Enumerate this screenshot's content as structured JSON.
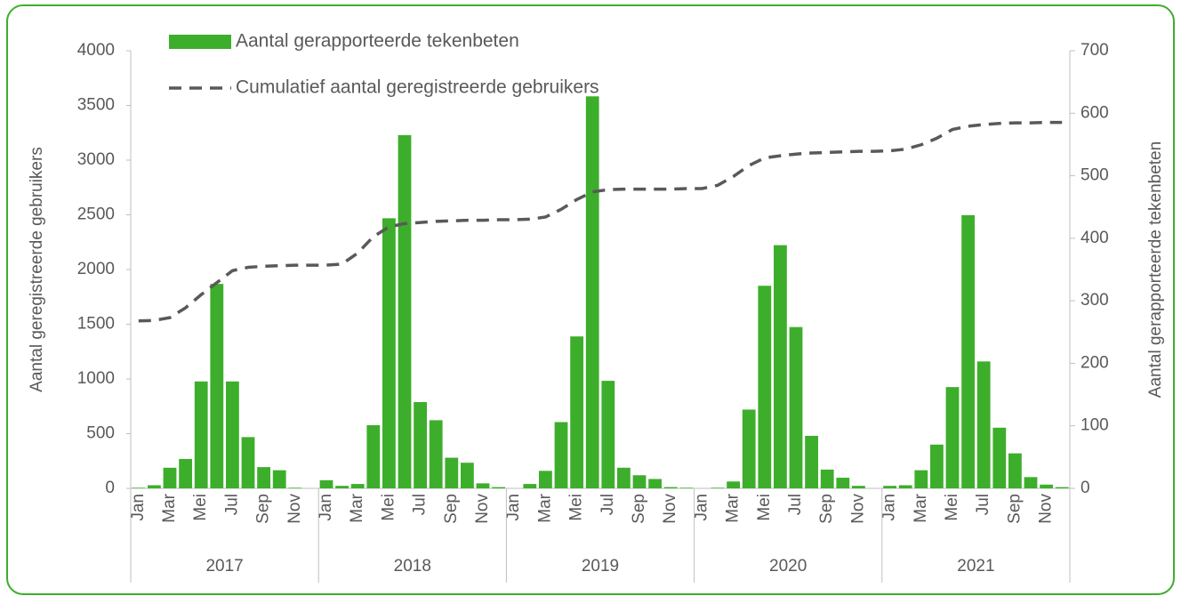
{
  "chart_data": {
    "type": "bar_line",
    "categories": [
      "Jan",
      null,
      "Mar",
      null,
      "Mei",
      null,
      "Jul",
      null,
      "Sep",
      null,
      "Nov",
      null,
      "Jan",
      null,
      "Mar",
      null,
      "Mei",
      null,
      "Jul",
      null,
      "Sep",
      null,
      "Nov",
      null,
      "Jan",
      null,
      "Mar",
      null,
      "Mei",
      null,
      "Jul",
      null,
      "Sep",
      null,
      "Nov",
      null,
      "Jan",
      null,
      "Mar",
      null,
      "Mei",
      null,
      "Jul",
      null,
      "Sep",
      null,
      "Nov",
      null,
      "Jan",
      null,
      "Mar",
      null,
      "Mei",
      null,
      "Jul",
      null,
      "Sep",
      null,
      "Nov",
      null
    ],
    "years": [
      "2017",
      "2018",
      "2019",
      "2020",
      "2021"
    ],
    "series": [
      {
        "name": "Aantal gerapporteerde tekenbeten",
        "type": "bar",
        "axis": "y2",
        "color": "#3dae2b",
        "values": [
          1,
          5,
          33,
          47,
          171,
          327,
          171,
          82,
          34,
          29,
          1,
          0,
          13,
          4,
          7,
          101,
          432,
          565,
          138,
          109,
          49,
          41,
          8,
          2,
          0,
          7,
          28,
          106,
          243,
          627,
          172,
          33,
          21,
          15,
          2,
          1,
          0,
          1,
          11,
          126,
          324,
          389,
          258,
          84,
          30,
          17,
          4,
          0,
          4,
          5,
          29,
          70,
          162,
          437,
          203,
          97,
          56,
          18,
          6,
          2
        ]
      },
      {
        "name": "Cumulatief aantal geregistreerde gebruikers",
        "type": "line",
        "axis": "y",
        "color": "#595959",
        "values": [
          1530,
          1535,
          1560,
          1650,
          1770,
          1880,
          1990,
          2020,
          2030,
          2035,
          2040,
          2040,
          2040,
          2050,
          2150,
          2300,
          2390,
          2420,
          2430,
          2440,
          2445,
          2450,
          2450,
          2455,
          2455,
          2460,
          2480,
          2550,
          2640,
          2710,
          2730,
          2735,
          2735,
          2735,
          2735,
          2740,
          2740,
          2770,
          2850,
          2950,
          3020,
          3040,
          3055,
          3065,
          3070,
          3075,
          3080,
          3080,
          3085,
          3100,
          3140,
          3200,
          3280,
          3310,
          3325,
          3335,
          3340,
          3340,
          3345,
          3345
        ]
      }
    ],
    "y_label": "Aantal geregistreerde gebruikers",
    "y2_label": "Aantal gerapporteerde tekenbeten",
    "ylim": [
      0,
      4000
    ],
    "yticks": [
      0,
      500,
      1000,
      1500,
      2000,
      2500,
      3000,
      3500,
      4000
    ],
    "y2lim": [
      0,
      700
    ],
    "y2ticks": [
      0,
      100,
      200,
      300,
      400,
      500,
      600,
      700
    ],
    "grid": false
  }
}
